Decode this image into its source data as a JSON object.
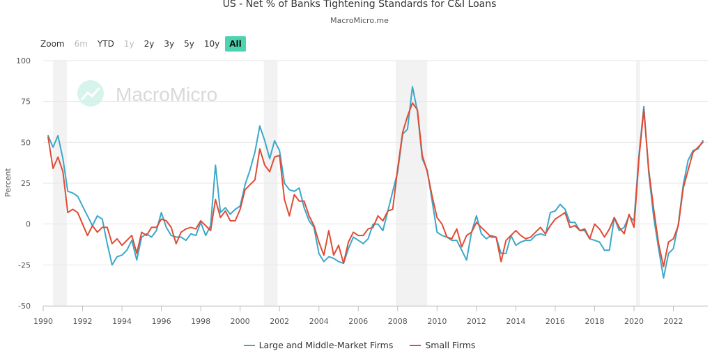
{
  "title": "US - Net % of Banks Tightening Standards for C&I Loans",
  "subtitle": "MacroMicro.me",
  "watermark": "MacroMicro",
  "zoom": {
    "label": "Zoom",
    "buttons": [
      {
        "label": "6m",
        "state": "disabled"
      },
      {
        "label": "YTD",
        "state": "normal"
      },
      {
        "label": "1y",
        "state": "disabled"
      },
      {
        "label": "2y",
        "state": "normal"
      },
      {
        "label": "3y",
        "state": "normal"
      },
      {
        "label": "5y",
        "state": "normal"
      },
      {
        "label": "10y",
        "state": "normal"
      },
      {
        "label": "All",
        "state": "active"
      }
    ]
  },
  "legend": {
    "large_label": "Large and Middle-Market Firms",
    "small_label": "Small Firms"
  },
  "colors": {
    "large": "#3aa8c9",
    "small": "#e04b35",
    "recession": "#f2f2f2",
    "grid": "#e6e6e6",
    "zoom_active": "#4cd4b0"
  },
  "chart_data": {
    "type": "line",
    "ylabel": "Percent",
    "xlabel": "",
    "ylim": [
      -50,
      100
    ],
    "xlim": [
      1990,
      2023.75
    ],
    "y_ticks": [
      "100",
      "75",
      "50",
      "25",
      "0",
      "-25",
      "-50"
    ],
    "x_ticks": [
      "1990",
      "1992",
      "1994",
      "1996",
      "1998",
      "2000",
      "2002",
      "2004",
      "2006",
      "2008",
      "2010",
      "2012",
      "2014",
      "2016",
      "2018",
      "2020",
      "2022"
    ],
    "recessions": [
      [
        1990.5,
        1991.2
      ],
      [
        2001.2,
        2001.9
      ],
      [
        2007.9,
        2009.5
      ],
      [
        2020.1,
        2020.3
      ]
    ],
    "series": [
      {
        "name": "Large and Middle-Market Firms",
        "points": [
          [
            1990.25,
            54
          ],
          [
            1990.5,
            47
          ],
          [
            1990.75,
            54
          ],
          [
            1991.0,
            40
          ],
          [
            1991.25,
            20
          ],
          [
            1991.5,
            19
          ],
          [
            1991.75,
            17
          ],
          [
            1992.0,
            11
          ],
          [
            1992.25,
            5
          ],
          [
            1992.5,
            -1
          ],
          [
            1992.75,
            5
          ],
          [
            1993.0,
            3
          ],
          [
            1993.25,
            -12
          ],
          [
            1993.5,
            -25
          ],
          [
            1993.75,
            -20
          ],
          [
            1994.0,
            -19
          ],
          [
            1994.25,
            -16
          ],
          [
            1994.5,
            -10
          ],
          [
            1994.75,
            -22
          ],
          [
            1995.0,
            -8
          ],
          [
            1995.25,
            -6
          ],
          [
            1995.5,
            -8
          ],
          [
            1995.75,
            -4
          ],
          [
            1996.0,
            7
          ],
          [
            1996.25,
            -2
          ],
          [
            1996.5,
            -7
          ],
          [
            1996.75,
            -8
          ],
          [
            1997.0,
            -8
          ],
          [
            1997.25,
            -10
          ],
          [
            1997.5,
            -6
          ],
          [
            1997.75,
            -7
          ],
          [
            1998.0,
            1
          ],
          [
            1998.25,
            -7
          ],
          [
            1998.5,
            -1
          ],
          [
            1998.75,
            36
          ],
          [
            1999.0,
            7
          ],
          [
            1999.25,
            10
          ],
          [
            1999.5,
            6
          ],
          [
            1999.75,
            9
          ],
          [
            2000.0,
            11
          ],
          [
            2000.25,
            24
          ],
          [
            2000.5,
            33
          ],
          [
            2000.75,
            44
          ],
          [
            2001.0,
            60
          ],
          [
            2001.25,
            51
          ],
          [
            2001.5,
            40
          ],
          [
            2001.75,
            51
          ],
          [
            2002.0,
            45
          ],
          [
            2002.25,
            25
          ],
          [
            2002.5,
            21
          ],
          [
            2002.75,
            20
          ],
          [
            2003.0,
            22
          ],
          [
            2003.25,
            10
          ],
          [
            2003.5,
            2
          ],
          [
            2003.75,
            -2
          ],
          [
            2004.0,
            -18
          ],
          [
            2004.25,
            -23
          ],
          [
            2004.5,
            -20
          ],
          [
            2004.75,
            -21
          ],
          [
            2005.0,
            -23
          ],
          [
            2005.25,
            -24
          ],
          [
            2005.5,
            -15
          ],
          [
            2005.75,
            -8
          ],
          [
            2006.0,
            -10
          ],
          [
            2006.25,
            -12
          ],
          [
            2006.5,
            -9
          ],
          [
            2006.75,
            0
          ],
          [
            2007.0,
            0
          ],
          [
            2007.25,
            -4
          ],
          [
            2007.5,
            8
          ],
          [
            2007.75,
            20
          ],
          [
            2008.0,
            32
          ],
          [
            2008.25,
            55
          ],
          [
            2008.5,
            58
          ],
          [
            2008.75,
            84
          ],
          [
            2009.0,
            69
          ],
          [
            2009.25,
            40
          ],
          [
            2009.5,
            33
          ],
          [
            2009.75,
            14
          ],
          [
            2010.0,
            -5
          ],
          [
            2010.25,
            -7
          ],
          [
            2010.5,
            -8
          ],
          [
            2010.75,
            -10
          ],
          [
            2011.0,
            -10
          ],
          [
            2011.25,
            -16
          ],
          [
            2011.5,
            -22
          ],
          [
            2011.75,
            -5
          ],
          [
            2012.0,
            5
          ],
          [
            2012.25,
            -6
          ],
          [
            2012.5,
            -9
          ],
          [
            2012.75,
            -7
          ],
          [
            2013.0,
            -8
          ],
          [
            2013.25,
            -18
          ],
          [
            2013.5,
            -18
          ],
          [
            2013.75,
            -7
          ],
          [
            2014.0,
            -13
          ],
          [
            2014.25,
            -11
          ],
          [
            2014.5,
            -10
          ],
          [
            2014.75,
            -10
          ],
          [
            2015.0,
            -7
          ],
          [
            2015.25,
            -6
          ],
          [
            2015.5,
            -7
          ],
          [
            2015.75,
            7
          ],
          [
            2016.0,
            8
          ],
          [
            2016.25,
            12
          ],
          [
            2016.5,
            9
          ],
          [
            2016.75,
            1
          ],
          [
            2017.0,
            1
          ],
          [
            2017.25,
            -4
          ],
          [
            2017.5,
            -4
          ],
          [
            2017.75,
            -9
          ],
          [
            2018.0,
            -10
          ],
          [
            2018.25,
            -11
          ],
          [
            2018.5,
            -16
          ],
          [
            2018.75,
            -16
          ],
          [
            2019.0,
            4
          ],
          [
            2019.25,
            -4
          ],
          [
            2019.5,
            -2
          ],
          [
            2019.75,
            5
          ],
          [
            2020.0,
            2
          ],
          [
            2020.25,
            42
          ],
          [
            2020.5,
            72
          ],
          [
            2020.75,
            31
          ],
          [
            2021.0,
            4
          ],
          [
            2021.25,
            -15
          ],
          [
            2021.5,
            -33
          ],
          [
            2021.75,
            -18
          ],
          [
            2022.0,
            -15
          ],
          [
            2022.25,
            0
          ],
          [
            2022.5,
            24
          ],
          [
            2022.75,
            39
          ],
          [
            2023.0,
            45
          ],
          [
            2023.25,
            46
          ],
          [
            2023.5,
            51
          ]
        ]
      },
      {
        "name": "Small Firms",
        "points": [
          [
            1990.25,
            53
          ],
          [
            1990.5,
            34
          ],
          [
            1990.75,
            41
          ],
          [
            1991.0,
            32
          ],
          [
            1991.25,
            7
          ],
          [
            1991.5,
            9
          ],
          [
            1991.75,
            7
          ],
          [
            1992.0,
            0
          ],
          [
            1992.25,
            -7
          ],
          [
            1992.5,
            -1
          ],
          [
            1992.75,
            -5
          ],
          [
            1993.0,
            -2
          ],
          [
            1993.25,
            -2
          ],
          [
            1993.5,
            -12
          ],
          [
            1993.75,
            -9
          ],
          [
            1994.0,
            -13
          ],
          [
            1994.25,
            -10
          ],
          [
            1994.5,
            -7
          ],
          [
            1994.75,
            -18
          ],
          [
            1995.0,
            -5
          ],
          [
            1995.25,
            -7
          ],
          [
            1995.5,
            -2
          ],
          [
            1995.75,
            -2
          ],
          [
            1996.0,
            3
          ],
          [
            1996.25,
            2
          ],
          [
            1996.5,
            -2
          ],
          [
            1996.75,
            -12
          ],
          [
            1997.0,
            -5
          ],
          [
            1997.25,
            -3
          ],
          [
            1997.5,
            -2
          ],
          [
            1997.75,
            -3
          ],
          [
            1998.0,
            2
          ],
          [
            1998.25,
            -1
          ],
          [
            1998.5,
            -4
          ],
          [
            1998.75,
            15
          ],
          [
            1999.0,
            4
          ],
          [
            1999.25,
            8
          ],
          [
            1999.5,
            2
          ],
          [
            1999.75,
            2
          ],
          [
            2000.0,
            9
          ],
          [
            2000.25,
            21
          ],
          [
            2000.5,
            24
          ],
          [
            2000.75,
            27
          ],
          [
            2001.0,
            46
          ],
          [
            2001.25,
            36
          ],
          [
            2001.5,
            32
          ],
          [
            2001.75,
            41
          ],
          [
            2002.0,
            42
          ],
          [
            2002.25,
            15
          ],
          [
            2002.5,
            5
          ],
          [
            2002.75,
            18
          ],
          [
            2003.0,
            14
          ],
          [
            2003.25,
            14
          ],
          [
            2003.5,
            5
          ],
          [
            2003.75,
            -1
          ],
          [
            2004.0,
            -11
          ],
          [
            2004.25,
            -19
          ],
          [
            2004.5,
            -4
          ],
          [
            2004.75,
            -19
          ],
          [
            2005.0,
            -13
          ],
          [
            2005.25,
            -24
          ],
          [
            2005.5,
            -11
          ],
          [
            2005.75,
            -5
          ],
          [
            2006.0,
            -7
          ],
          [
            2006.25,
            -7
          ],
          [
            2006.5,
            -3
          ],
          [
            2006.75,
            -2
          ],
          [
            2007.0,
            5
          ],
          [
            2007.25,
            2
          ],
          [
            2007.5,
            8
          ],
          [
            2007.75,
            9
          ],
          [
            2008.0,
            34
          ],
          [
            2008.25,
            56
          ],
          [
            2008.5,
            66
          ],
          [
            2008.75,
            74
          ],
          [
            2009.0,
            70
          ],
          [
            2009.25,
            42
          ],
          [
            2009.5,
            32
          ],
          [
            2009.75,
            17
          ],
          [
            2010.0,
            4
          ],
          [
            2010.25,
            0
          ],
          [
            2010.5,
            -8
          ],
          [
            2010.75,
            -9
          ],
          [
            2011.0,
            -3
          ],
          [
            2011.25,
            -14
          ],
          [
            2011.5,
            -7
          ],
          [
            2011.75,
            -5
          ],
          [
            2012.0,
            1
          ],
          [
            2012.25,
            -2
          ],
          [
            2012.5,
            -5
          ],
          [
            2012.75,
            -8
          ],
          [
            2013.0,
            -8
          ],
          [
            2013.25,
            -23
          ],
          [
            2013.5,
            -10
          ],
          [
            2013.75,
            -7
          ],
          [
            2014.0,
            -4
          ],
          [
            2014.25,
            -7
          ],
          [
            2014.5,
            -9
          ],
          [
            2014.75,
            -8
          ],
          [
            2015.0,
            -5
          ],
          [
            2015.25,
            -2
          ],
          [
            2015.5,
            -6
          ],
          [
            2015.75,
            -1
          ],
          [
            2016.0,
            3
          ],
          [
            2016.25,
            5
          ],
          [
            2016.5,
            7
          ],
          [
            2016.75,
            -2
          ],
          [
            2017.0,
            -1
          ],
          [
            2017.25,
            -4
          ],
          [
            2017.5,
            -3
          ],
          [
            2017.75,
            -9
          ],
          [
            2018.0,
            0
          ],
          [
            2018.25,
            -3
          ],
          [
            2018.5,
            -8
          ],
          [
            2018.75,
            -3
          ],
          [
            2019.0,
            4
          ],
          [
            2019.25,
            -2
          ],
          [
            2019.5,
            -6
          ],
          [
            2019.75,
            6
          ],
          [
            2020.0,
            -2
          ],
          [
            2020.25,
            40
          ],
          [
            2020.5,
            70
          ],
          [
            2020.75,
            33
          ],
          [
            2021.0,
            9
          ],
          [
            2021.25,
            -12
          ],
          [
            2021.5,
            -26
          ],
          [
            2021.75,
            -11
          ],
          [
            2022.0,
            -9
          ],
          [
            2022.25,
            -1
          ],
          [
            2022.5,
            22
          ],
          [
            2022.75,
            33
          ],
          [
            2023.0,
            44
          ],
          [
            2023.25,
            47
          ],
          [
            2023.5,
            50
          ]
        ]
      }
    ]
  }
}
